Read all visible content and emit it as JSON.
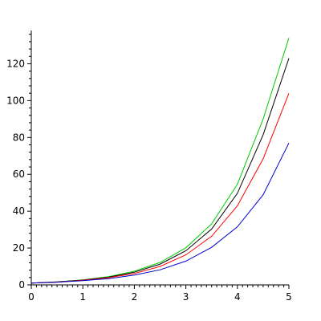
{
  "chart_data": {
    "type": "line",
    "title": "",
    "xlabel": "",
    "ylabel": "",
    "xlim": [
      0,
      5
    ],
    "ylim": [
      0,
      135
    ],
    "grid": false,
    "legend": "none",
    "x_ticks": [
      {
        "value": 0,
        "label": "0"
      },
      {
        "value": 1,
        "label": "1"
      },
      {
        "value": 2,
        "label": "2"
      },
      {
        "value": 3,
        "label": "3"
      },
      {
        "value": 4,
        "label": "4"
      },
      {
        "value": 5,
        "label": "5"
      }
    ],
    "y_ticks": [
      {
        "value": 0,
        "label": "0"
      },
      {
        "value": 20,
        "label": "20"
      },
      {
        "value": 40,
        "label": "40"
      },
      {
        "value": 60,
        "label": "60"
      },
      {
        "value": 80,
        "label": "80"
      },
      {
        "value": 100,
        "label": "100"
      },
      {
        "value": 120,
        "label": "120"
      }
    ],
    "x": [
      0,
      0.5,
      1,
      1.5,
      2,
      2.5,
      3,
      3.5,
      4,
      4.5,
      5
    ],
    "series": [
      {
        "color": "#00cc00",
        "values": [
          1,
          1.6,
          2.7,
          4.5,
          7.4,
          12.2,
          20.1,
          33.1,
          54.6,
          90.0,
          134
        ]
      },
      {
        "color": "#000000",
        "values": [
          1,
          1.6,
          2.6,
          4.2,
          6.9,
          11.3,
          18.5,
          30.3,
          49.7,
          81.5,
          123
        ]
      },
      {
        "color": "#ff0000",
        "values": [
          1,
          1.5,
          2.5,
          3.9,
          6.2,
          10.0,
          16.3,
          26.4,
          42.9,
          68.4,
          104
        ]
      },
      {
        "color": "#0000cc",
        "values": [
          1,
          1.5,
          2.3,
          3.4,
          5.3,
          8.2,
          12.9,
          20.4,
          31.5,
          48.9,
          77
        ]
      }
    ]
  }
}
